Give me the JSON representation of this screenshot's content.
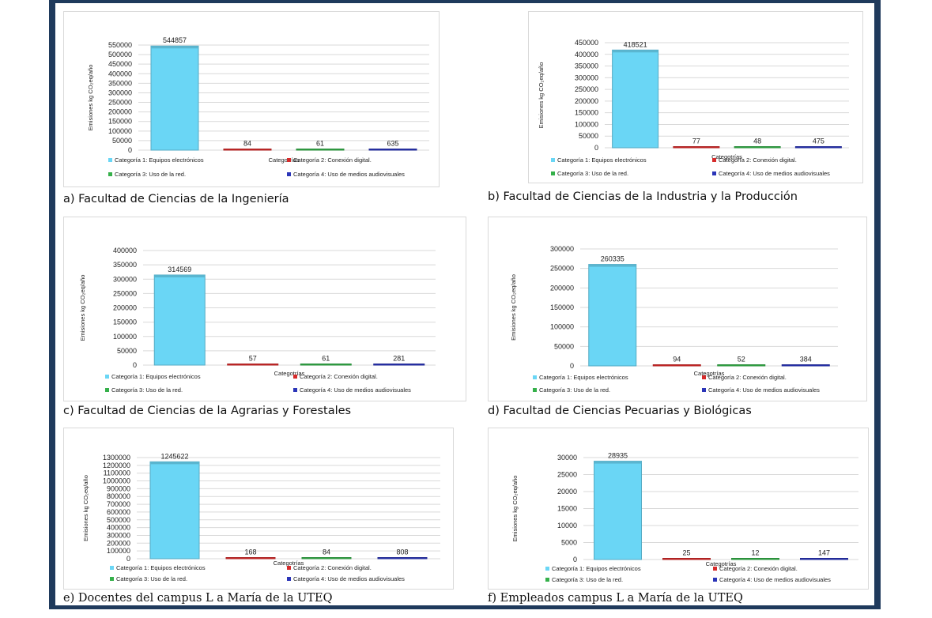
{
  "colors": {
    "cat1": "#6ad6f5",
    "cat2": "#d62b2b",
    "cat3": "#35b04a",
    "cat4": "#2b35b8",
    "frame": "#1f3a5c",
    "grid": "#d9d9d9"
  },
  "chart_data": [
    {
      "type": "bar",
      "caption": "a) Facultad de Ciencias de la Ingeniería",
      "xlabel": "Categotrías",
      "ylabel": "Emisiones kg CO₂eq/año",
      "ylim": [
        0,
        550000
      ],
      "yticks": [
        "550000",
        "500000",
        "450000",
        "400000",
        "350000",
        "300000",
        "250000",
        "200000",
        "150000",
        "100000",
        "50000",
        "0"
      ],
      "categories": [
        "Categoría 1: Equipos electrónicos",
        "Categoría 2: Conexión digital.",
        "Categoría 3: Uso de la red.",
        "Categoría 4: Uso de medios audiovisuales"
      ],
      "values": [
        544857,
        84,
        61,
        635
      ],
      "value_labels": [
        "544857",
        "84",
        "61",
        "635"
      ],
      "grid": true,
      "legend_position": "bottom"
    },
    {
      "type": "bar",
      "caption": "b) Facultad de Ciencias de la Industria y la Producción",
      "xlabel": "Categotrías",
      "ylabel": "Emisiones kg CO₂eq/año",
      "ylim": [
        0,
        450000
      ],
      "yticks": [
        "450000",
        "400000",
        "350000",
        "300000",
        "250000",
        "200000",
        "150000",
        "100000",
        "50000",
        "0"
      ],
      "categories": [
        "Categoría 1: Equipos electrónicos",
        "Categoría 2: Conexión digital.",
        "Categoría 3: Uso de la red.",
        "Categoría 4: Uso de medios audiovisuales"
      ],
      "values": [
        418521,
        77,
        48,
        475
      ],
      "value_labels": [
        "418521",
        "77",
        "48",
        "475"
      ],
      "grid": true,
      "legend_position": "bottom"
    },
    {
      "type": "bar",
      "caption": "c) Facultad de Ciencias de la Agrarias y Forestales",
      "xlabel": "Categotrías",
      "ylabel": "Emisiones kg CO₂eq/año",
      "ylim": [
        0,
        400000
      ],
      "yticks": [
        "400000",
        "350000",
        "300000",
        "250000",
        "200000",
        "150000",
        "100000",
        "50000",
        "0"
      ],
      "categories": [
        "Categoría 1: Equipos electrónicos",
        "Categoría 2: Conexión digital.",
        "Categoría 3: Uso de la red.",
        "Categoría 4: Uso de medios audiovisuales"
      ],
      "values": [
        314569,
        57,
        61,
        281
      ],
      "value_labels": [
        "314569",
        "57",
        "61",
        "281"
      ],
      "grid": true,
      "legend_position": "bottom"
    },
    {
      "type": "bar",
      "caption": "d) Facultad de Ciencias Pecuarias y Biológicas",
      "xlabel": "Categotrías",
      "ylabel": "Emisiones kg CO₂eq/año",
      "ylim": [
        0,
        300000
      ],
      "yticks": [
        "300000",
        "250000",
        "200000",
        "150000",
        "100000",
        "50000",
        "0"
      ],
      "categories": [
        "Categoría 1: Equipos electrónicos",
        "Categoría 2: Conexión digital.",
        "Categoría 3: Uso de la red.",
        "Categoría 4: Uso de medios audiovisuales"
      ],
      "values": [
        260335,
        94,
        52,
        384
      ],
      "value_labels": [
        "260335",
        "94",
        "52",
        "384"
      ],
      "grid": true,
      "legend_position": "bottom"
    },
    {
      "type": "bar",
      "caption": "e) Docentes del campus L a María de la UTEQ",
      "xlabel": "Categotrías",
      "ylabel": "Emisiones kg CO₂eq/año",
      "ylim": [
        0,
        1300000
      ],
      "yticks": [
        "1300000",
        "1200000",
        "1100000",
        "1000000",
        "900000",
        "800000",
        "700000",
        "600000",
        "500000",
        "400000",
        "300000",
        "200000",
        "100000",
        "0"
      ],
      "categories": [
        "Categoría 1: Equipos electrónicos",
        "Categoría 2: Conexión digital.",
        "Categoría 3: Uso de la red.",
        "Categoría 4: Uso de medios audiovisuales"
      ],
      "values": [
        1245622,
        168,
        84,
        808
      ],
      "value_labels": [
        "1245622",
        "168",
        "84",
        "808"
      ],
      "grid": true,
      "legend_position": "bottom"
    },
    {
      "type": "bar",
      "caption": "f) Empleados campus L a María de la UTEQ",
      "xlabel": "Categotrías",
      "ylabel": "Emisiones kg CO₂eq/año",
      "ylim": [
        0,
        30000
      ],
      "yticks": [
        "30000",
        "25000",
        "20000",
        "15000",
        "10000",
        "5000",
        "0"
      ],
      "categories": [
        "Categoría 1: Equipos electrónicos",
        "Categoría 2: Conexión digital.",
        "Categoría 3: Uso de la red.",
        "Categoría 4: Uso de medios audiovisuales"
      ],
      "values": [
        28935,
        25,
        12,
        147
      ],
      "value_labels": [
        "28935",
        "25",
        "12",
        "147"
      ],
      "grid": true,
      "legend_position": "bottom"
    }
  ]
}
